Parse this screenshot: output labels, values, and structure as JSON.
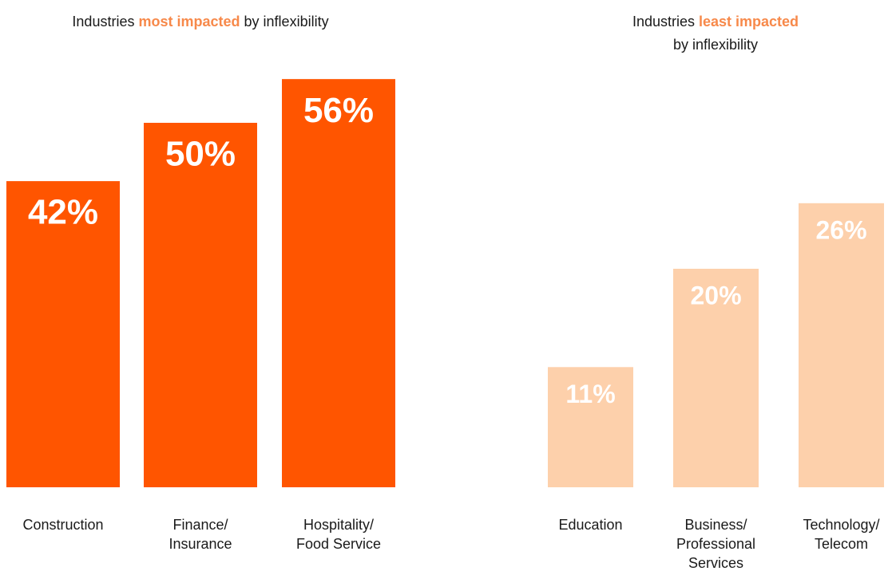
{
  "chart_data": [
    {
      "type": "bar",
      "title": [
        "Industries",
        "most impacted",
        "by inflexibility"
      ],
      "categories": [
        [
          "Construction"
        ],
        [
          "Finance/",
          "Insurance"
        ],
        [
          "Hospitality/",
          "Food Service"
        ]
      ],
      "values": [
        42,
        50,
        56
      ],
      "value_labels": [
        "42%",
        "50%",
        "56%"
      ],
      "color": "#ff5500",
      "highlight_color": "#f7894a"
    },
    {
      "type": "bar",
      "title": [
        "Industries",
        "least impacted",
        "by inflexibility"
      ],
      "categories": [
        [
          "Education"
        ],
        [
          "Business/",
          "Professional",
          "Services"
        ],
        [
          "Technology/",
          "Telecom"
        ]
      ],
      "values": [
        11,
        20,
        26
      ],
      "value_labels": [
        "11%",
        "20%",
        "26%"
      ],
      "color": "#fdd0ab",
      "highlight_color": "#f7894a"
    }
  ]
}
